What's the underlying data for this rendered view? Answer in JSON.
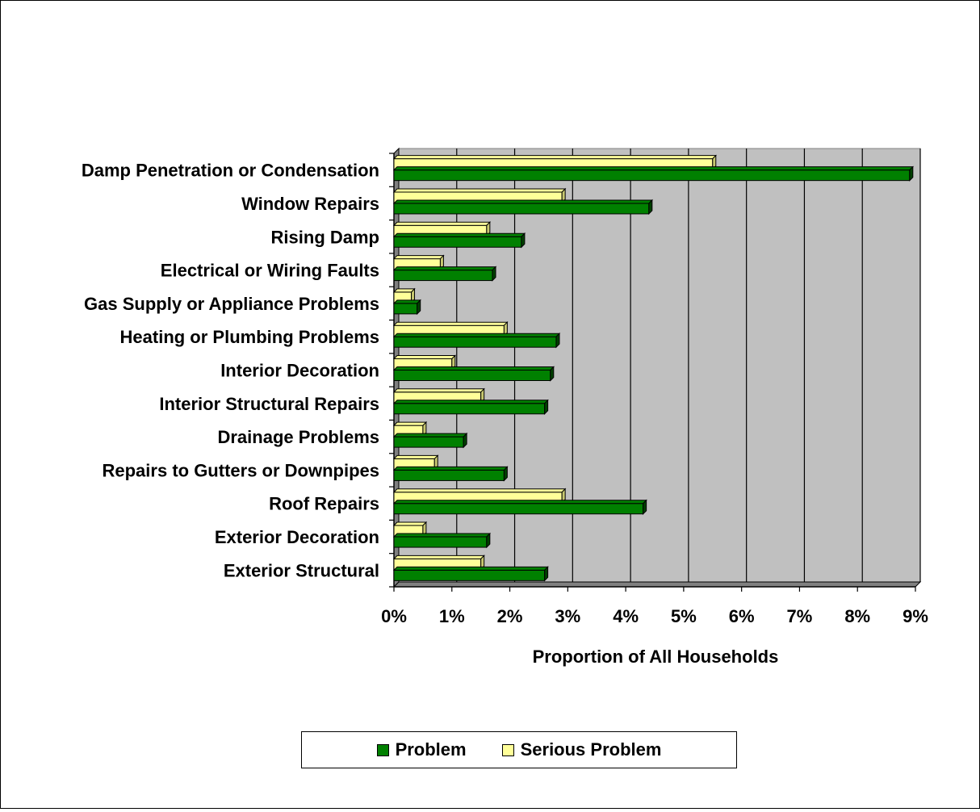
{
  "chart_data": {
    "type": "bar",
    "orientation": "horizontal",
    "categories": [
      "Damp Penetration or Condensation",
      "Window Repairs",
      "Rising Damp",
      "Electrical or Wiring Faults",
      "Gas Supply or Appliance Problems",
      "Heating or Plumbing Problems",
      "Interior Decoration",
      "Interior Structural Repairs",
      "Drainage Problems",
      "Repairs to Gutters or Downpipes",
      "Roof Repairs",
      "Exterior Decoration",
      "Exterior Structural"
    ],
    "series": [
      {
        "name": "Serious Problem",
        "color": "#FFFF99",
        "values": [
          5.5,
          2.9,
          1.6,
          0.8,
          0.3,
          1.9,
          1.0,
          1.5,
          0.5,
          0.7,
          2.9,
          0.5,
          1.5
        ]
      },
      {
        "name": "Problem",
        "color": "#008000",
        "values": [
          8.9,
          4.4,
          2.2,
          1.7,
          0.4,
          2.8,
          2.7,
          2.6,
          1.2,
          1.9,
          4.3,
          1.6,
          2.6
        ]
      }
    ],
    "xlabel": "Proportion of All Households",
    "xlim": [
      0,
      9
    ],
    "xticks": [
      "0%",
      "1%",
      "2%",
      "3%",
      "4%",
      "5%",
      "6%",
      "7%",
      "8%",
      "9%"
    ],
    "grid": true,
    "plot_background": "#C0C0C0",
    "legend_position": "bottom",
    "legend": [
      {
        "label": "Problem",
        "color": "#008000"
      },
      {
        "label": "Serious Problem",
        "color": "#FFFF99"
      }
    ]
  }
}
